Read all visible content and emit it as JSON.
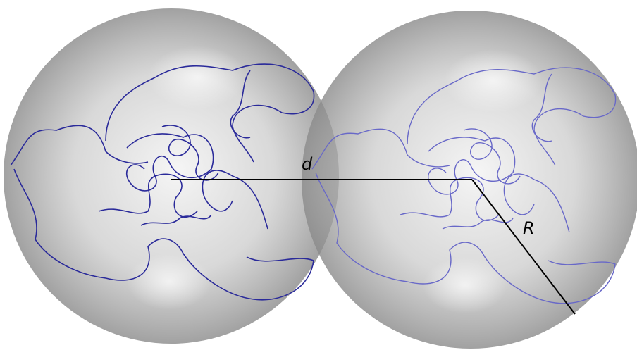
{
  "labels": {
    "distance": "d",
    "radius": "R"
  }
}
